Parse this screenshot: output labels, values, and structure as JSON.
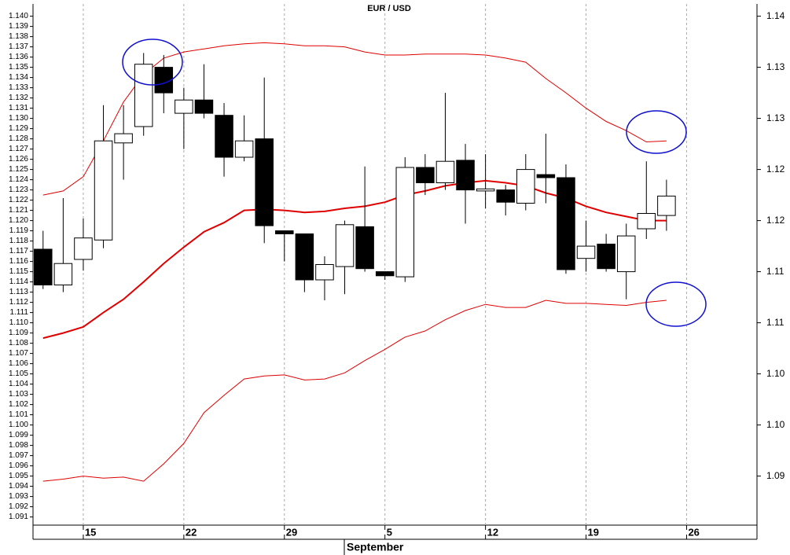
{
  "chart_data": {
    "type": "candlestick",
    "title": "EUR / USD",
    "xlabel": "September",
    "categories": [
      null,
      null,
      "15",
      null,
      null,
      null,
      null,
      "22",
      null,
      null,
      null,
      null,
      "29",
      null,
      null,
      null,
      null,
      "5",
      null,
      null,
      null,
      null,
      "12",
      null,
      null,
      null,
      null,
      "19",
      null,
      null,
      null,
      null,
      "26",
      null,
      null,
      null
    ],
    "open": [
      1.1172,
      1.1137,
      1.1162,
      1.1181,
      1.1276,
      1.1292,
      1.135,
      1.1305,
      1.1318,
      1.1303,
      1.1262,
      1.128,
      1.119,
      1.1187,
      1.1142,
      1.1155,
      1.1194,
      1.115,
      1.1145,
      1.1252,
      1.1237,
      1.1259,
      1.1229,
      1.123,
      1.1217,
      1.1245,
      1.1242,
      1.1163,
      1.1177,
      1.115,
      1.1192,
      1.1205,
      null,
      null,
      null,
      null
    ],
    "high": [
      1.119,
      1.1222,
      1.1202,
      1.1313,
      1.1313,
      1.1364,
      1.1362,
      1.133,
      1.1353,
      1.1315,
      1.1303,
      1.134,
      1.119,
      1.1187,
      1.1165,
      1.12,
      1.1253,
      1.115,
      1.1262,
      1.1265,
      1.1325,
      1.1275,
      1.1265,
      1.1235,
      1.1265,
      1.1285,
      1.1255,
      1.12,
      1.1187,
      1.1197,
      1.1258,
      1.124,
      null,
      null,
      null,
      null
    ],
    "low": [
      1.1133,
      1.113,
      1.1151,
      1.1173,
      1.124,
      1.1283,
      1.1305,
      1.127,
      1.13,
      1.1243,
      1.1258,
      1.1178,
      1.116,
      1.113,
      1.1122,
      1.1128,
      1.115,
      1.1142,
      1.114,
      1.1225,
      1.123,
      1.1197,
      1.1212,
      1.1205,
      1.121,
      1.1217,
      1.1148,
      1.115,
      1.115,
      1.1123,
      1.1182,
      1.119,
      null,
      null,
      null,
      null
    ],
    "close": [
      1.1137,
      1.1158,
      1.1183,
      1.1278,
      1.1285,
      1.1353,
      1.1325,
      1.1318,
      1.1305,
      1.1262,
      1.1278,
      1.1195,
      1.1187,
      1.1142,
      1.1157,
      1.1196,
      1.1153,
      1.1146,
      1.1252,
      1.1237,
      1.1258,
      1.123,
      1.1231,
      1.1218,
      1.125,
      1.1242,
      1.1152,
      1.1175,
      1.1153,
      1.1185,
      1.1207,
      1.1224,
      null,
      null,
      null,
      null
    ],
    "up_color": "#ffffff",
    "down_color": "#000000",
    "bands": [
      {
        "color": "#e00000",
        "values": [
          1.1225,
          1.1229,
          1.1243,
          1.1278,
          1.1316,
          1.1343,
          1.1359,
          1.1365,
          1.1368,
          1.1371,
          1.1373,
          1.1374,
          1.1373,
          1.1371,
          1.1371,
          1.137,
          1.1365,
          1.1362,
          1.1362,
          1.1363,
          1.1363,
          1.1363,
          1.1362,
          1.1359,
          1.1355,
          1.1339,
          1.1325,
          1.131,
          1.1297,
          1.1288,
          1.1277,
          1.1278,
          null,
          null,
          null,
          null
        ]
      },
      {
        "color": "#e00000",
        "values": [
          1.1085,
          1.109,
          1.1096,
          1.111,
          1.1123,
          1.114,
          1.1158,
          1.1174,
          1.1189,
          1.1198,
          1.121,
          1.1211,
          1.121,
          1.1208,
          1.1209,
          1.1212,
          1.1214,
          1.1218,
          1.1225,
          1.1229,
          1.1234,
          1.1237,
          1.1239,
          1.1237,
          1.1234,
          1.1227,
          1.1222,
          1.1214,
          1.1208,
          1.1204,
          1.12,
          1.12,
          null,
          null,
          null,
          null
        ]
      },
      {
        "color": "#e00000",
        "values": [
          1.0945,
          1.0947,
          1.095,
          1.0948,
          1.0949,
          1.0945,
          1.0962,
          1.0982,
          1.1012,
          1.1029,
          1.1045,
          1.1048,
          1.1049,
          1.1044,
          1.1045,
          1.1051,
          1.1063,
          1.1074,
          1.1086,
          1.1092,
          1.1103,
          1.1112,
          1.1118,
          1.1115,
          1.1115,
          1.1122,
          1.1119,
          1.1119,
          1.1118,
          1.1117,
          1.112,
          1.1122,
          null,
          null,
          null,
          null
        ]
      }
    ],
    "ylim": [
      1.0902,
      1.1412
    ],
    "yticks": [
      1.091,
      1.092,
      1.093,
      1.094,
      1.095,
      1.096,
      1.097,
      1.098,
      1.099,
      {
        "value": 1.1,
        "label": "1.100"
      },
      1.101,
      1.102,
      1.103,
      1.104,
      1.105,
      1.106,
      1.107,
      1.108,
      1.109,
      {
        "value": 1.11,
        "label": "1.110"
      },
      1.111,
      1.112,
      1.113,
      1.114,
      1.115,
      1.116,
      1.117,
      1.118,
      1.119,
      {
        "value": 1.12,
        "label": "1.120"
      },
      1.121,
      1.122,
      1.123,
      1.124,
      1.125,
      1.126,
      1.127,
      1.128,
      1.129,
      {
        "value": 1.13,
        "label": "1.130"
      },
      1.131,
      1.132,
      1.133,
      1.134,
      1.135,
      1.136,
      1.137,
      1.138,
      1.139,
      {
        "value": 1.14,
        "label": "1.140"
      }
    ],
    "y2lim": [
      1.0902,
      1.1412
    ],
    "y2ticks": [
      {
        "value": 1.095,
        "label": "1.09"
      },
      {
        "value": 1.1,
        "label": "1.10"
      },
      {
        "value": 1.105,
        "label": "1.10"
      },
      {
        "value": 1.11,
        "label": "1.11"
      },
      {
        "value": 1.115,
        "label": "1.11"
      },
      {
        "value": 1.12,
        "label": "1.12"
      },
      {
        "value": 1.125,
        "label": "1.12"
      },
      {
        "value": 1.13,
        "label": "1.13"
      },
      {
        "value": 1.135,
        "label": "1.13"
      },
      {
        "value": 1.14,
        "label": "1.14"
      }
    ],
    "grid": true
  }
}
